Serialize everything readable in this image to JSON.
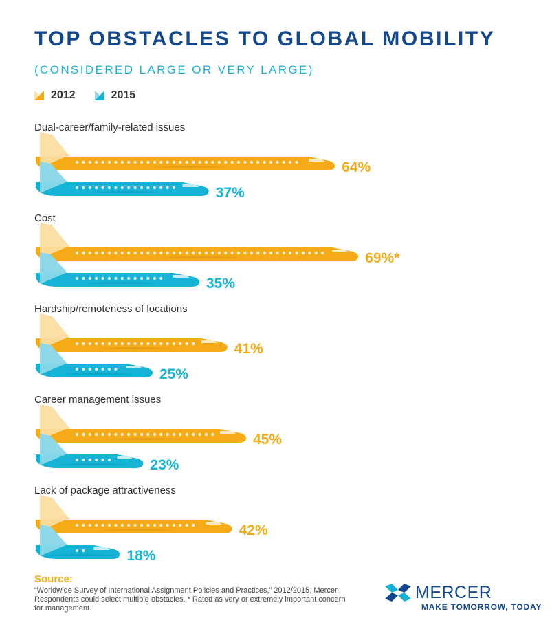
{
  "header": {
    "title": "TOP OBSTACLES TO GLOBAL MOBILITY",
    "subtitle": "(CONSIDERED LARGE OR VERY LARGE)"
  },
  "legend": {
    "items": [
      {
        "label": "2012",
        "color": "#f5ab17"
      },
      {
        "label": "2015",
        "color": "#17b3d6"
      }
    ]
  },
  "chart_data": {
    "type": "bar",
    "orientation": "horizontal",
    "categories": [
      "Dual-career/family-related issues",
      "Cost",
      "Hardship/remoteness of locations",
      "Career management issues",
      "Lack of package attractiveness"
    ],
    "series": [
      {
        "name": "2012",
        "color": "#f5ab17",
        "values": [
          64,
          69,
          41,
          45,
          42
        ],
        "labels": [
          "64%",
          "69%*",
          "41%",
          "45%",
          "42%"
        ]
      },
      {
        "name": "2015",
        "color": "#17b3d6",
        "values": [
          37,
          35,
          25,
          23,
          18
        ],
        "labels": [
          "37%",
          "35%",
          "25%",
          "23%",
          "18%"
        ]
      }
    ],
    "value_unit": "%",
    "grid": false,
    "legend_position": "top-left"
  },
  "footer": {
    "source_title": "Source:",
    "source_text": "“Worldwide Survey of International Assignment Policies and Practices,” 2012/2015, Mercer. Respondents could select multiple obstacles. * Rated as very or extremely important concern for management."
  },
  "brand": {
    "name": "MERCER",
    "tagline": "MAKE TOMORROW, TODAY",
    "colors": {
      "dark": "#13488f",
      "light": "#17b3d6"
    }
  }
}
